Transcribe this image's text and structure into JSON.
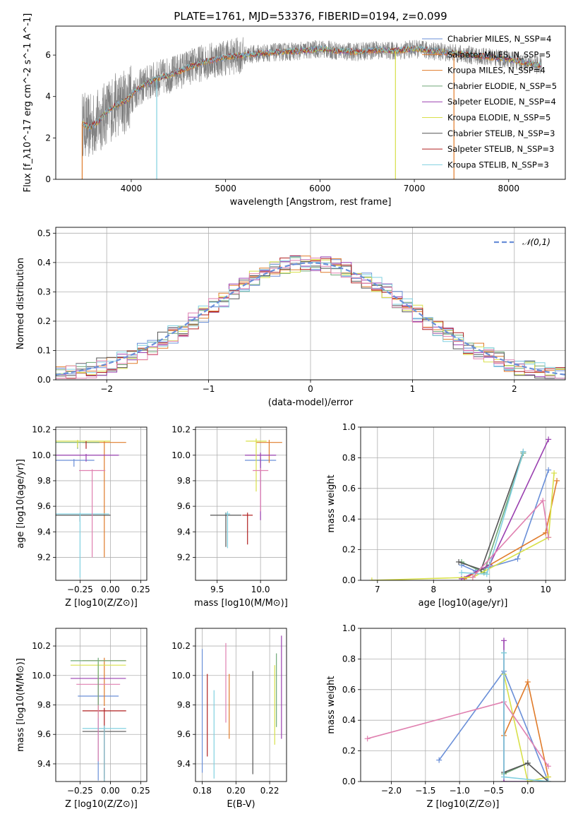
{
  "figure": {
    "title": "PLATE=1761, MJD=53376, FIBERID=0194, z=0.099"
  },
  "colors": {
    "c1": "#6a8fd8",
    "c2": "#e07b2a",
    "c3": "#6fa878",
    "c4": "#9a40b0",
    "c5": "#d8e04a",
    "c6": "#555555",
    "c7": "#b02020",
    "c8": "#80d0e0",
    "pink": "#e080b0",
    "gray": "#7f7f7f"
  },
  "chart_data": [
    {
      "id": "spectrum",
      "type": "line",
      "xlabel": "wavelength [Angstrom, rest frame]",
      "ylabel": "Flux [f_λ10^-17 erg cm^-2 s^-1 A^-1]",
      "xlim": [
        3200,
        8600
      ],
      "ylim": [
        0,
        7.4
      ],
      "xticks": [
        4000,
        5000,
        6000,
        7000,
        8000
      ],
      "yticks": [
        0,
        2,
        4,
        6
      ],
      "legend_position": "upper-right",
      "legend": [
        {
          "label": "Chabrier MILES, N_SSP=4",
          "color": "#6a8fd8"
        },
        {
          "label": "Salpeter MILES, N_SSP=5",
          "color": "#e07b2a"
        },
        {
          "label": "Kroupa MILES, N_SSP=4",
          "color": "#e07b2a"
        },
        {
          "label": "Chabrier ELODIE, N_SSP=5",
          "color": "#6fa878"
        },
        {
          "label": "Salpeter ELODIE, N_SSP=4",
          "color": "#9a40b0"
        },
        {
          "label": "Kroupa ELODIE, N_SSP=5",
          "color": "#d8e04a"
        },
        {
          "label": "Chabrier STELIB, N_SSP=3",
          "color": "#555555"
        },
        {
          "label": "Salpeter STELIB, N_SSP=3",
          "color": "#b02020"
        },
        {
          "label": "Kroupa STELIB, N_SSP=3",
          "color": "#80d0e0"
        }
      ],
      "data_curve": {
        "x": [
          3480,
          3560,
          3650,
          3750,
          3850,
          3950,
          4050,
          4150,
          4300,
          4450,
          4600,
          4800,
          5000,
          5200,
          5400,
          5600,
          5800,
          6000,
          6200,
          6400,
          6600,
          6800,
          7000,
          7200,
          7400,
          7600,
          7800,
          8000,
          8200,
          8350
        ],
        "y": [
          2.7,
          2.5,
          2.8,
          3.3,
          3.6,
          3.8,
          4.3,
          4.6,
          4.9,
          5.1,
          5.4,
          5.7,
          5.9,
          6.0,
          6.1,
          6.15,
          6.2,
          6.3,
          6.2,
          6.15,
          6.25,
          6.2,
          6.3,
          6.2,
          6.1,
          6.0,
          5.9,
          5.8,
          5.6,
          5.5
        ]
      },
      "spike_positions": [
        3480,
        4270,
        6800,
        7420
      ]
    },
    {
      "id": "residuals",
      "type": "histogram",
      "xlabel": "(data-model)/error",
      "ylabel": "Normed distribution",
      "xlim": [
        -2.5,
        2.5
      ],
      "ylim": [
        0,
        0.52
      ],
      "xticks": [
        -2,
        -1,
        0,
        1,
        2
      ],
      "yticks": [
        0.0,
        0.1,
        0.2,
        0.3,
        0.4,
        0.5
      ],
      "legend": [
        {
          "label": "𝒩(0,1)",
          "color": "#6a8fd8",
          "style": "dashed"
        }
      ],
      "legend_position": "upper-right",
      "bin_width": 0.1,
      "reference_curve": "gaussian N(0,1)"
    },
    {
      "id": "age-vs-Z",
      "type": "errorbar",
      "xlabel": "Z [log10(Z/Z⊙)]",
      "ylabel": "age  [log10(age/yr)]",
      "xlim": [
        -0.45,
        0.3
      ],
      "ylim": [
        9.02,
        10.22
      ],
      "xticks": [
        -0.25,
        0.0,
        0.25
      ],
      "yticks": [
        9.2,
        9.4,
        9.6,
        9.8,
        10.0,
        10.2
      ],
      "xtick_labels": [
        "−0.25",
        "0.00",
        "0.25"
      ],
      "series": [
        {
          "color": "#6a8fd8",
          "x": -0.3,
          "y": 9.96,
          "xerr": 0.28,
          "yerr": [
            0.0,
            0.0
          ]
        },
        {
          "color": "#e07b2a",
          "x": -0.05,
          "y": 10.1,
          "xerr": 0.3,
          "yerr": [
            0.9,
            0.0
          ]
        },
        {
          "color": "#6fa878",
          "x": -0.27,
          "y": 10.1,
          "xerr": 0.3,
          "yerr": [
            0.0,
            0.0
          ]
        },
        {
          "color": "#9a40b0",
          "x": -0.2,
          "y": 10.0,
          "xerr": 0.45,
          "yerr": [
            0.0,
            0.0
          ]
        },
        {
          "color": "#d8e04a",
          "x": -0.27,
          "y": 10.11,
          "xerr": 0.45,
          "yerr": [
            0.0,
            0.0
          ]
        },
        {
          "color": "#555555",
          "x": -0.25,
          "y": 9.53,
          "xerr": 0.42,
          "yerr": [
            0.0,
            0.0
          ]
        },
        {
          "color": "#b02020",
          "x": -0.2,
          "y": 10.1,
          "xerr": 0.0,
          "yerr": [
            0.0,
            0.0
          ]
        },
        {
          "color": "#80d0e0",
          "x": -0.25,
          "y": 9.54,
          "xerr": 0.4,
          "yerr": [
            0.5,
            0.0
          ]
        },
        {
          "color": "#e080b0",
          "x": -0.15,
          "y": 9.88,
          "xerr": 0.18,
          "yerr": [
            0.68,
            0.0
          ]
        }
      ]
    },
    {
      "id": "age-vs-mass",
      "type": "errorbar",
      "xlabel": "mass [log10(M/M⊙)]",
      "xlim": [
        9.25,
        10.3
      ],
      "ylim": [
        9.02,
        10.22
      ],
      "xticks": [
        9.5,
        10.0
      ],
      "yticks": [
        9.2,
        9.4,
        9.6,
        9.8,
        10.0,
        10.2
      ],
      "series": [
        {
          "color": "#6a8fd8",
          "x": 10.0,
          "y": 9.96,
          "xerr": 0.3
        },
        {
          "color": "#e07b2a",
          "x": 10.1,
          "y": 10.1,
          "xerr": 0.25
        },
        {
          "color": "#9a40b0",
          "x": 10.0,
          "y": 10.0,
          "xerr": 0.3
        },
        {
          "color": "#d8e04a",
          "x": 9.95,
          "y": 10.11,
          "xerr": 0.2
        },
        {
          "color": "#555555",
          "x": 9.6,
          "y": 9.53,
          "xerr": 0.3
        },
        {
          "color": "#b02020",
          "x": 9.85,
          "y": 9.53,
          "xerr": 0.1
        },
        {
          "color": "#80d0e0",
          "x": 9.62,
          "y": 9.54,
          "xerr": 0.05
        },
        {
          "color": "#e080b0",
          "x": 10.0,
          "y": 9.88,
          "xerr": 0.15
        }
      ]
    },
    {
      "id": "massweight-vs-age",
      "type": "line",
      "xlabel": "age  [log10(age/yr)]",
      "ylabel": "mass weight",
      "xlim": [
        6.7,
        10.35
      ],
      "ylim": [
        0.0,
        1.0
      ],
      "xticks": [
        7,
        8,
        9,
        10
      ],
      "yticks": [
        0.0,
        0.2,
        0.4,
        0.6,
        0.8,
        1.0
      ],
      "series": [
        {
          "color": "#6a8fd8",
          "x": [
            8.5,
            8.75,
            9.5,
            10.05
          ],
          "y": [
            0.1,
            0.06,
            0.14,
            0.72
          ]
        },
        {
          "color": "#e07b2a",
          "x": [
            8.55,
            9.0,
            10.0,
            10.2
          ],
          "y": [
            0.01,
            0.1,
            0.31,
            0.65
          ]
        },
        {
          "color": "#6fa878",
          "x": [
            8.5,
            8.9,
            9.6
          ],
          "y": [
            0.12,
            0.05,
            0.83
          ]
        },
        {
          "color": "#9a40b0",
          "x": [
            8.5,
            9.0,
            10.05
          ],
          "y": [
            0.01,
            0.1,
            0.92
          ]
        },
        {
          "color": "#d8e04a",
          "x": [
            6.9,
            8.7,
            10.05,
            10.15
          ],
          "y": [
            0.0,
            0.02,
            0.28,
            0.7
          ]
        },
        {
          "color": "#555555",
          "x": [
            8.45,
            8.85,
            9.6
          ],
          "y": [
            0.12,
            0.07,
            0.84
          ]
        },
        {
          "color": "#80d0e0",
          "x": [
            8.5,
            8.95,
            9.6
          ],
          "y": [
            0.05,
            0.04,
            0.84
          ]
        },
        {
          "color": "#e080b0",
          "x": [
            8.7,
            9.95,
            10.05
          ],
          "y": [
            0.02,
            0.52,
            0.28
          ]
        }
      ]
    },
    {
      "id": "mass-vs-Z",
      "type": "errorbar",
      "xlabel": "Z [log10(Z/Z⊙)]",
      "ylabel": "mass [log10(M/M⊙)]",
      "xlim": [
        -0.45,
        0.3
      ],
      "ylim": [
        9.28,
        10.32
      ],
      "xticks": [
        -0.25,
        0.0,
        0.25
      ],
      "yticks": [
        9.4,
        9.6,
        9.8,
        10.0,
        10.2
      ],
      "xtick_labels": [
        "−0.25",
        "0.00",
        "0.25"
      ],
      "series": [
        {
          "color": "#6a8fd8",
          "x": -0.1,
          "y": 9.86,
          "xerr": 0.28
        },
        {
          "color": "#e07b2a",
          "x": -0.05,
          "y": 10.1,
          "xerr": 0.3
        },
        {
          "color": "#9a40b0",
          "x": -0.1,
          "y": 9.98,
          "xerr": 0.38
        },
        {
          "color": "#d8e04a",
          "x": -0.1,
          "y": 10.07,
          "xerr": 0.38
        },
        {
          "color": "#555555",
          "x": -0.05,
          "y": 9.62,
          "xerr": 0.3
        },
        {
          "color": "#b02020",
          "x": -0.05,
          "y": 9.76,
          "xerr": 0.3
        },
        {
          "color": "#80d0e0",
          "x": -0.05,
          "y": 9.64,
          "xerr": 0.3
        },
        {
          "color": "#e080b0",
          "x": -0.1,
          "y": 9.94,
          "xerr": 0.3
        },
        {
          "color": "#6fa878",
          "x": -0.1,
          "y": 10.1,
          "xerr": 0.38
        }
      ]
    },
    {
      "id": "mass-vs-EBV",
      "type": "errorbar",
      "xlabel": "E(B-V)",
      "xlim": [
        0.176,
        0.23
      ],
      "ylim": [
        9.28,
        10.32
      ],
      "xticks": [
        0.18,
        0.2,
        0.22
      ],
      "yticks": [
        9.4,
        9.6,
        9.8,
        10.0,
        10.2
      ],
      "series": [
        {
          "color": "#6a8fd8",
          "x": 0.18,
          "y": 9.76,
          "yerr": 0.42
        },
        {
          "color": "#b02020",
          "x": 0.183,
          "y": 9.73,
          "yerr": 0.28
        },
        {
          "color": "#80d0e0",
          "x": 0.187,
          "y": 9.6,
          "yerr": 0.3
        },
        {
          "color": "#e080b0",
          "x": 0.194,
          "y": 9.95,
          "yerr": 0.27
        },
        {
          "color": "#e07b2a",
          "x": 0.196,
          "y": 9.79,
          "yerr": 0.22
        },
        {
          "color": "#555555",
          "x": 0.21,
          "y": 9.68,
          "yerr": 0.35
        },
        {
          "color": "#d8e04a",
          "x": 0.223,
          "y": 9.8,
          "yerr": 0.27
        },
        {
          "color": "#6fa878",
          "x": 0.224,
          "y": 9.9,
          "yerr": 0.25
        },
        {
          "color": "#9a40b0",
          "x": 0.227,
          "y": 9.92,
          "yerr": 0.35
        }
      ]
    },
    {
      "id": "massweight-vs-Z",
      "type": "line",
      "xlabel": "Z [log10(Z/Z⊙)]",
      "ylabel": "mass weight",
      "xlim": [
        -2.45,
        0.55
      ],
      "ylim": [
        0.0,
        1.0
      ],
      "xticks": [
        -2.0,
        -1.5,
        -1.0,
        -0.5,
        0.0
      ],
      "yticks": [
        0.0,
        0.2,
        0.4,
        0.6,
        0.8,
        1.0
      ],
      "xtick_labels": [
        "−2.0",
        "−1.5",
        "−1.0",
        "−0.5",
        "0.0"
      ],
      "series": [
        {
          "color": "#6a8fd8",
          "x": [
            -1.3,
            -0.35,
            0.3
          ],
          "y": [
            0.14,
            0.72,
            0.0
          ]
        },
        {
          "color": "#e07b2a",
          "x": [
            -0.35,
            0.0,
            0.3
          ],
          "y": [
            0.3,
            0.65,
            0.03
          ]
        },
        {
          "color": "#6fa878",
          "x": [
            -0.35,
            -0.35,
            0.0
          ],
          "y": [
            0.84,
            0.05,
            0.12
          ]
        },
        {
          "color": "#9a40b0",
          "x": [
            -0.35,
            -0.35,
            0.0
          ],
          "y": [
            0.92,
            0.0,
            0.0
          ]
        },
        {
          "color": "#d8e04a",
          "x": [
            -0.35,
            0.0,
            0.3
          ],
          "y": [
            0.7,
            0.0,
            0.03
          ]
        },
        {
          "color": "#555555",
          "x": [
            -0.35,
            0.0,
            0.3
          ],
          "y": [
            0.06,
            0.12,
            0.0
          ]
        },
        {
          "color": "#e080b0",
          "x": [
            -2.35,
            -0.35,
            0.3
          ],
          "y": [
            0.28,
            0.52,
            0.1
          ]
        },
        {
          "color": "#80d0e0",
          "x": [
            -0.35,
            -0.35,
            0.3
          ],
          "y": [
            0.84,
            0.03,
            0.0
          ]
        }
      ]
    }
  ]
}
